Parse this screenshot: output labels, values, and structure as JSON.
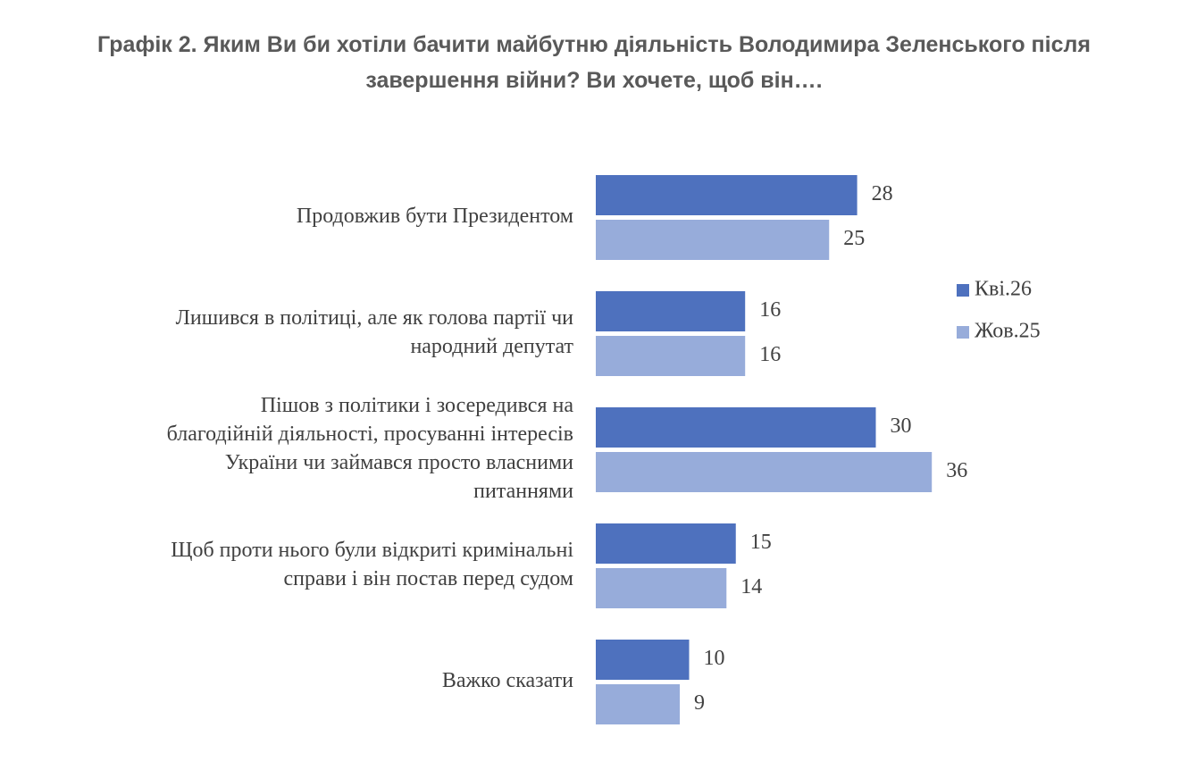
{
  "title_lines": [
    "Графік 2. Яким Ви би хотіли бачити майбутню діяльність Володимира Зеленського після",
    "завершення війни? Ви хочете, щоб він…."
  ],
  "colors": {
    "series1": "#4E71BE",
    "series2": "#97ACDA",
    "text": "#404040",
    "title": "#595959"
  },
  "chart_data": {
    "type": "bar",
    "orientation": "horizontal",
    "title": "Графік 2. Яким Ви би хотіли бачити майбутню діяльність Володимира Зеленського після завершення війни? Ви хочете, щоб він….",
    "categories": [
      [
        "Продовжив бути Президентом"
      ],
      [
        "Лишився в політиці, але як голова партії чи",
        "народний депутат"
      ],
      [
        "Пішов з політики і зосередився на",
        "благодійній діяльності, просуванні інтересів",
        "України чи займався просто власними",
        "питаннями"
      ],
      [
        "Щоб проти нього були відкриті кримінальні",
        "справи і він постав перед судом"
      ],
      [
        "Важко сказати"
      ]
    ],
    "series": [
      {
        "name": "Кві.26",
        "values": [
          28,
          16,
          30,
          15,
          10
        ]
      },
      {
        "name": "Жов.25",
        "values": [
          25,
          16,
          36,
          14,
          9
        ]
      }
    ],
    "legend_position": "right",
    "grid": false,
    "data_labels": true
  }
}
